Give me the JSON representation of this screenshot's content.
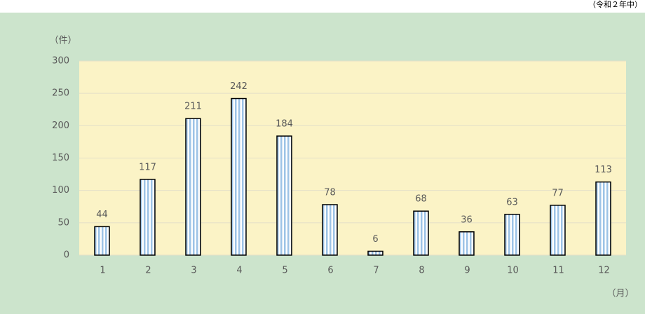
{
  "chart_data": {
    "type": "bar",
    "note": "（令和２年中）",
    "y_unit": "（件）",
    "x_unit": "（月）",
    "categories": [
      "1",
      "2",
      "3",
      "4",
      "5",
      "6",
      "7",
      "8",
      "9",
      "10",
      "11",
      "12"
    ],
    "values": [
      44,
      117,
      211,
      242,
      184,
      78,
      6,
      68,
      36,
      63,
      77,
      113
    ],
    "color": "#9dc3e6",
    "ylim": [
      0,
      300
    ],
    "yticks": [
      0,
      50,
      100,
      150,
      200,
      250,
      300
    ],
    "grid": true
  }
}
